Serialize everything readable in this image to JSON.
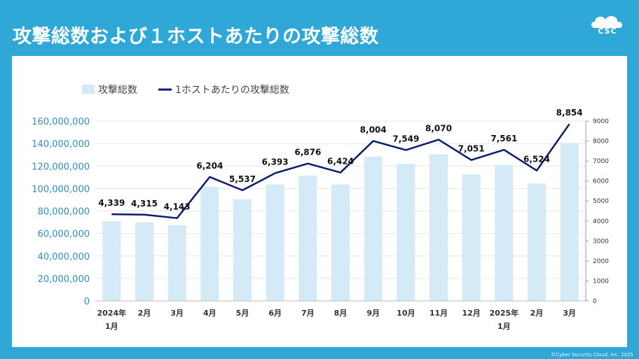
{
  "page": {
    "title": "攻撃総数および１ホストあたりの攻撃総数",
    "logo_text": "CSC",
    "copyright": "©Cyber Security Cloud, Inc. 2025"
  },
  "colors": {
    "background": "#2fa8d8",
    "bar": "#d4ebf7",
    "line": "#0b1a6e",
    "left_axis_text": "#2d8fc0"
  },
  "chart_data": {
    "type": "bar+line",
    "legend": [
      "攻撃総数",
      "1ホストあたりの攻撃総数"
    ],
    "legend_position": "top",
    "categories": [
      [
        "2024年",
        "1月"
      ],
      [
        "2月"
      ],
      [
        "3月"
      ],
      [
        "4月"
      ],
      [
        "5月"
      ],
      [
        "6月"
      ],
      [
        "7月"
      ],
      [
        "8月"
      ],
      [
        "9月"
      ],
      [
        "10月"
      ],
      [
        "11月"
      ],
      [
        "12月"
      ],
      [
        "2025年",
        "1月"
      ],
      [
        "2月"
      ],
      [
        "3月"
      ]
    ],
    "series": [
      {
        "name": "攻撃総数",
        "type": "bar",
        "axis": "left",
        "values": [
          71000000,
          70000000,
          67500000,
          101500000,
          90500000,
          103500000,
          111500000,
          103500000,
          128500000,
          122000000,
          130500000,
          112500000,
          121000000,
          104500000,
          140500000
        ]
      },
      {
        "name": "1ホストあたりの攻撃総数",
        "type": "line",
        "axis": "right",
        "values": [
          4339,
          4315,
          4143,
          6204,
          5537,
          6393,
          6876,
          6424,
          8004,
          7549,
          8070,
          7051,
          7561,
          6524,
          8854
        ],
        "labels": [
          "4,339",
          "4,315",
          "4,143",
          "6,204",
          "5,537",
          "6,393",
          "6,876",
          "6,424",
          "8,004",
          "7,549",
          "8,070",
          "7,051",
          "7,561",
          "6,524",
          "8,854"
        ]
      }
    ],
    "left_axis": {
      "min": 0,
      "max": 160000000,
      "ticks": [
        "0",
        "20,000,000",
        "40,000,000",
        "60,000,000",
        "80,000,000",
        "100,000,000",
        "120,000,000",
        "140,000,000",
        "160,000,000"
      ]
    },
    "right_axis": {
      "min": 0,
      "max": 9000,
      "ticks": [
        "0",
        "1000",
        "2000",
        "3000",
        "4000",
        "5000",
        "6000",
        "7000",
        "8000",
        "9000"
      ]
    },
    "grid": true
  }
}
